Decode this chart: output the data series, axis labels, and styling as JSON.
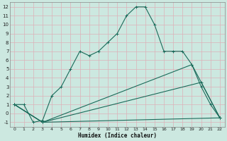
{
  "xlabel": "Humidex (Indice chaleur)",
  "bg_color": "#cce8e0",
  "grid_color": "#b0d0c8",
  "line_color": "#1a6b5a",
  "xlim": [
    -0.5,
    22.5
  ],
  "ylim": [
    -1.5,
    12.5
  ],
  "xticks": [
    0,
    1,
    2,
    3,
    4,
    5,
    6,
    7,
    8,
    9,
    10,
    11,
    12,
    13,
    14,
    15,
    16,
    17,
    18,
    19,
    20,
    21,
    22
  ],
  "yticks": [
    -1,
    0,
    1,
    2,
    3,
    4,
    5,
    6,
    7,
    8,
    9,
    10,
    11,
    12
  ],
  "line1_x": [
    0,
    1,
    2,
    3,
    4,
    5,
    6,
    7,
    8,
    9,
    10,
    11,
    12,
    13,
    14,
    15,
    16,
    17,
    18,
    19,
    20,
    21,
    22
  ],
  "line1_y": [
    1,
    1,
    -1,
    -0.8,
    2,
    3,
    5,
    7,
    6.5,
    7,
    8,
    9,
    11,
    12,
    12,
    10,
    7,
    7,
    7,
    5.5,
    3,
    1,
    -0.5
  ],
  "line2_x": [
    0,
    3,
    19,
    22
  ],
  "line2_y": [
    1,
    -1,
    5.5,
    -0.5
  ],
  "line3_x": [
    0,
    3,
    20,
    22
  ],
  "line3_y": [
    1,
    -1,
    3.5,
    -0.5
  ],
  "line4_x": [
    0,
    3,
    22
  ],
  "line4_y": [
    1,
    -1,
    -0.5
  ]
}
